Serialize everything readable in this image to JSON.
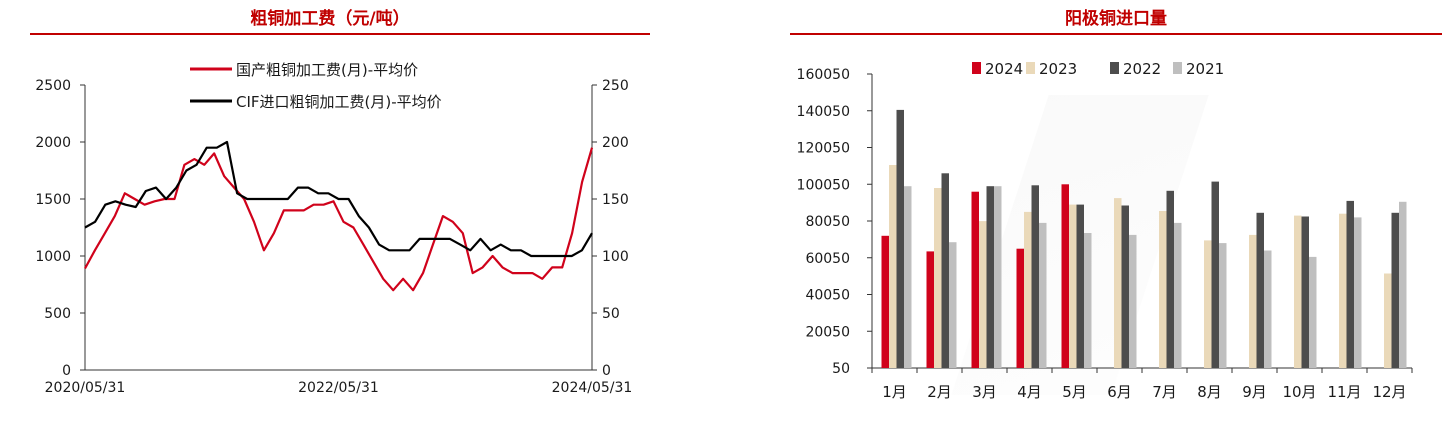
{
  "colors": {
    "title": "#c00000",
    "domestic_line": "#d0021b",
    "cif_line": "#000000",
    "bar_2024": "#d0021b",
    "bar_2023": "#ead9b9",
    "bar_2022": "#4d4d4d",
    "bar_2021": "#bfbfbf"
  },
  "chart_data": [
    {
      "type": "line",
      "title": "粗铜加工费（元/吨）",
      "x_ticks": [
        "2020/05/31",
        "2022/05/31",
        "2024/05/31"
      ],
      "ylim_left": [
        0,
        2500
      ],
      "yticks_left": [
        "0",
        "500",
        "1000",
        "1500",
        "2000",
        "2500"
      ],
      "ylim_right": [
        0,
        250
      ],
      "yticks_right": [
        "0",
        "50",
        "100",
        "150",
        "200",
        "250"
      ],
      "grid": false,
      "legend_position": "top",
      "series": [
        {
          "name": "国产粗铜加工费(月)-平均价",
          "axis": "left",
          "values": [
            890,
            1050,
            1200,
            1350,
            1550,
            1500,
            1450,
            1480,
            1500,
            1500,
            1800,
            1850,
            1800,
            1900,
            1700,
            1600,
            1500,
            1300,
            1050,
            1200,
            1400,
            1400,
            1400,
            1450,
            1450,
            1480,
            1300,
            1250,
            1100,
            950,
            800,
            700,
            800,
            700,
            850,
            1100,
            1350,
            1300,
            1200,
            850,
            900,
            1000,
            900,
            850,
            850,
            850,
            800,
            900,
            900,
            1200,
            1650,
            1950
          ]
        },
        {
          "name": "CIF进口粗铜加工费(月)-平均价",
          "axis": "right",
          "values": [
            125,
            130,
            145,
            148,
            145,
            143,
            157,
            160,
            150,
            160,
            175,
            180,
            195,
            195,
            200,
            155,
            150,
            150,
            150,
            150,
            150,
            160,
            160,
            155,
            155,
            150,
            150,
            135,
            125,
            110,
            105,
            105,
            105,
            115,
            115,
            115,
            115,
            110,
            105,
            115,
            105,
            110,
            105,
            105,
            100,
            100,
            100,
            100,
            100,
            105,
            120
          ]
        }
      ]
    },
    {
      "type": "bar",
      "title": "阳极铜进口量",
      "categories": [
        "1月",
        "2月",
        "3月",
        "4月",
        "5月",
        "6月",
        "7月",
        "8月",
        "9月",
        "10月",
        "11月",
        "12月"
      ],
      "ylim": [
        50,
        160050
      ],
      "yticks": [
        "50",
        "20050",
        "40050",
        "60050",
        "80050",
        "100050",
        "120050",
        "140050",
        "160050"
      ],
      "grid": false,
      "legend_position": "top",
      "series": [
        {
          "name": "2024",
          "values": [
            72000,
            63500,
            96000,
            65000,
            100000,
            null,
            null,
            null,
            null,
            null,
            null,
            null
          ]
        },
        {
          "name": "2023",
          "values": [
            110500,
            98000,
            80000,
            85000,
            89000,
            92500,
            85500,
            69500,
            72500,
            83000,
            84000,
            51500
          ]
        },
        {
          "name": "2022",
          "values": [
            140500,
            106000,
            99000,
            99500,
            89000,
            88500,
            96500,
            101500,
            84500,
            82500,
            91000,
            84500
          ]
        },
        {
          "name": "2021",
          "values": [
            99000,
            68500,
            99000,
            79000,
            73500,
            72500,
            79000,
            68000,
            64000,
            60500,
            82000,
            90500
          ]
        }
      ]
    }
  ]
}
